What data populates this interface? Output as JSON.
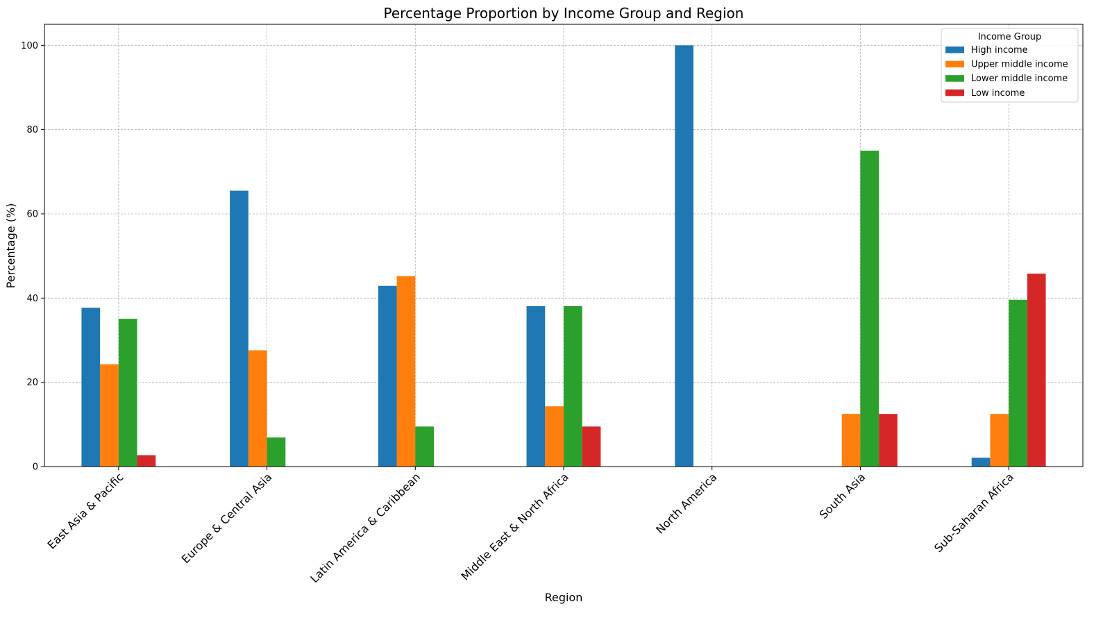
{
  "chart_data": {
    "type": "bar",
    "title": "Percentage Proportion by Income Group and Region",
    "xlabel": "Region",
    "ylabel": "Percentage (%)",
    "ylim": [
      0,
      105
    ],
    "yticks": [
      0,
      20,
      40,
      60,
      80,
      100
    ],
    "grid": true,
    "legend": {
      "title": "Income Group",
      "placement": "top-right"
    },
    "categories": [
      "East Asia & Pacific",
      "Europe & Central Asia",
      "Latin America & Caribbean",
      "Middle East & North Africa",
      "North America",
      "South Asia",
      "Sub-Saharan Africa"
    ],
    "series": [
      {
        "name": "High income",
        "color": "#1f77b4",
        "values": [
          37.7,
          65.5,
          42.9,
          38.1,
          100.0,
          0,
          2.1
        ]
      },
      {
        "name": "Upper middle income",
        "color": "#ff7f0e",
        "values": [
          24.3,
          27.6,
          45.2,
          14.3,
          0,
          12.5,
          12.5
        ]
      },
      {
        "name": "Lower middle income",
        "color": "#2ca02c",
        "values": [
          35.1,
          6.9,
          9.5,
          38.1,
          0,
          75.0,
          39.6
        ]
      },
      {
        "name": "Low income",
        "color": "#d62728",
        "values": [
          2.7,
          0,
          0,
          9.5,
          0,
          12.5,
          45.8
        ]
      }
    ]
  }
}
